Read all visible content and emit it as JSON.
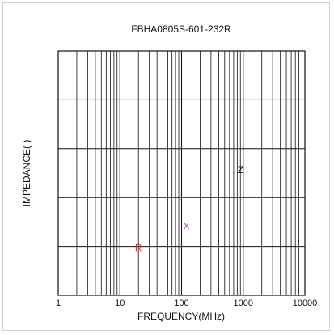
{
  "chart_data": {
    "type": "line",
    "title": "FBHA0805S-601-232R",
    "xlabel": "FREQUENCY(MHz)",
    "ylabel": "IMPEDANCE(  )",
    "x_scale": "log",
    "xlim": [
      1,
      10000
    ],
    "x_ticks": [
      "1",
      "10",
      "100",
      "1000",
      "10000"
    ],
    "y_divisions": 5,
    "grid": true,
    "series": [
      {
        "name": "R",
        "x": 20,
        "level": 0.18,
        "color": "#e03030"
      },
      {
        "name": "X",
        "x": 120,
        "level": 0.27,
        "color": "#c040c0"
      },
      {
        "name": "Z",
        "x": 900,
        "level": 0.5,
        "color": "#111111"
      }
    ]
  }
}
